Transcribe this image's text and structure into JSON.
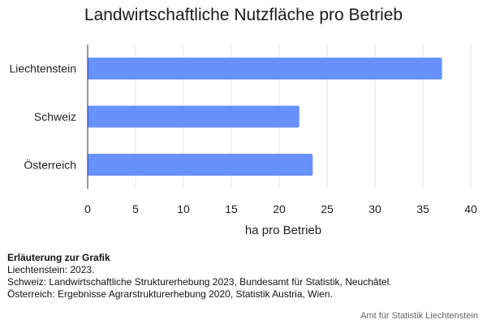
{
  "chart_data": {
    "type": "bar",
    "orientation": "horizontal",
    "title": "Landwirtschaftliche Nutzfläche pro Betrieb",
    "xlabel": "ha pro Betrieb",
    "ylabel": "",
    "categories": [
      "Liechtenstein",
      "Schweiz",
      "Österreich"
    ],
    "values": [
      37,
      22.1,
      23.5
    ],
    "xlim": [
      0,
      40
    ],
    "xticks": [
      0,
      5,
      10,
      15,
      20,
      25,
      30,
      35,
      40
    ],
    "grid": true,
    "bar_color": "#6691ff"
  },
  "notes": {
    "heading": "Erläuterung zur Grafik",
    "lines": [
      "Liechtenstein: 2023.",
      "Schweiz: Landwirtschaftliche Strukturerhebung 2023, Bundesamt für Statistik, Neuchâtel.",
      "Österreich: Ergebnisse Agrarstrukturerhebung 2020, Statistik Austria, Wien."
    ]
  },
  "source": "Amt für Statistik Liechtenstein"
}
